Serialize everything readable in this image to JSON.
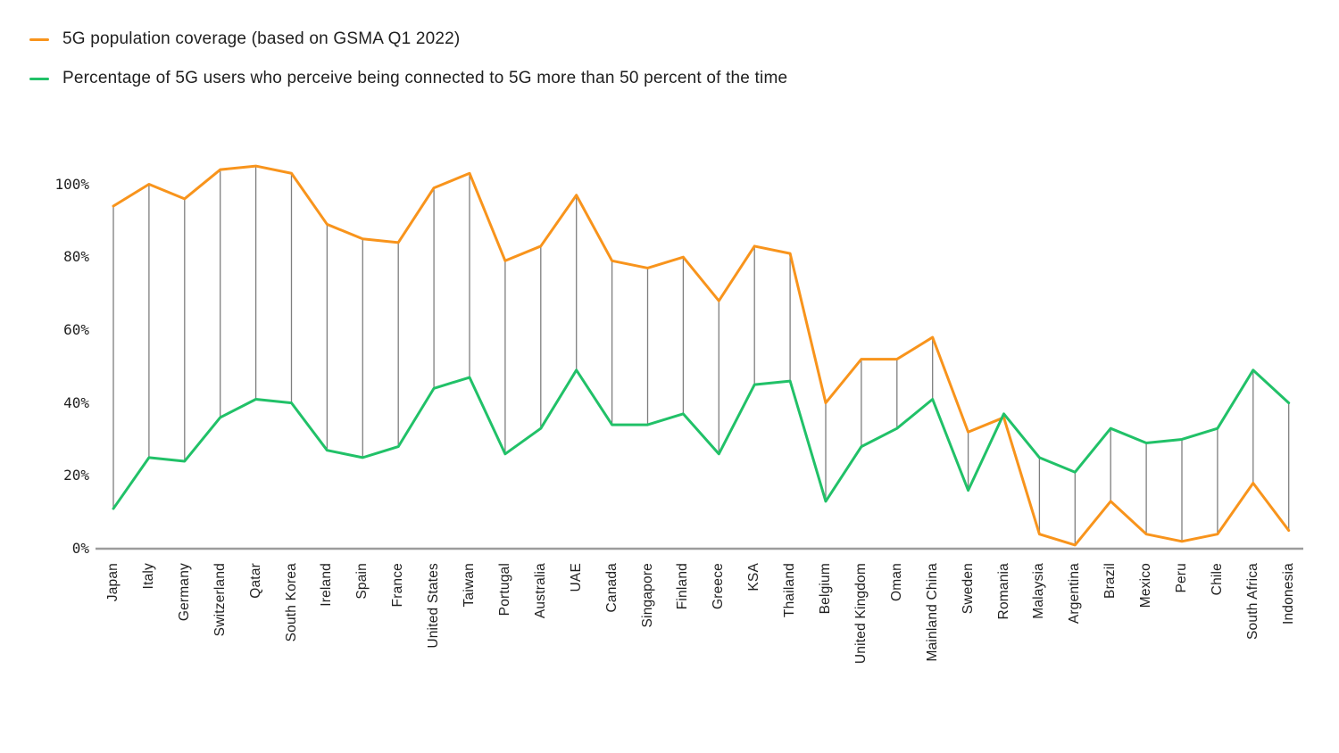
{
  "legend": {
    "items": [
      {
        "label": "5G population coverage (based on GSMA Q1 2022)",
        "color": "#F8941C"
      },
      {
        "label": "Percentage of 5G users who perceive being connected to 5G more than 50 percent of the time",
        "color": "#21C168"
      }
    ]
  },
  "chart_data": {
    "type": "line",
    "categories": [
      "Japan",
      "Italy",
      "Germany",
      "Switzerland",
      "Qatar",
      "South Korea",
      "Ireland",
      "Spain",
      "France",
      "United States",
      "Taiwan",
      "Portugal",
      "Australia",
      "UAE",
      "Canada",
      "Singapore",
      "Finland",
      "Greece",
      "KSA",
      "Thailand",
      "Belgium",
      "United Kingdom",
      "Oman",
      "Mainland China",
      "Sweden",
      "Romania",
      "Malaysia",
      "Argentina",
      "Brazil",
      "Mexico",
      "Peru",
      "Chile",
      "South Africa",
      "Indonesia"
    ],
    "series": [
      {
        "name": "5G population coverage (based on GSMA Q1 2022)",
        "color": "#F8941C",
        "values": [
          94,
          100,
          96,
          104,
          105,
          103,
          89,
          85,
          84,
          99,
          103,
          79,
          83,
          97,
          79,
          77,
          80,
          68,
          83,
          81,
          40,
          52,
          52,
          58,
          32,
          36,
          4,
          1,
          13,
          4,
          2,
          4,
          18,
          5
        ]
      },
      {
        "name": "Percentage of 5G users who perceive being connected to 5G more than 50 percent of the time",
        "color": "#21C168",
        "values": [
          11,
          25,
          24,
          36,
          41,
          40,
          27,
          25,
          28,
          44,
          47,
          26,
          33,
          49,
          34,
          34,
          37,
          26,
          45,
          46,
          13,
          28,
          33,
          41,
          16,
          37,
          25,
          21,
          33,
          29,
          30,
          33,
          49,
          40
        ]
      }
    ],
    "title": "",
    "xlabel": "",
    "ylabel": "",
    "yticks": [
      0,
      20,
      40,
      60,
      80,
      100
    ],
    "ytick_labels": [
      "0%",
      "20%",
      "40%",
      "60%",
      "80%",
      "100%"
    ],
    "ylim": [
      0,
      107
    ],
    "grid": false,
    "vertical_connectors": true,
    "legend_position": "top-left"
  },
  "style": {
    "axis_color": "#9c9c9c",
    "connector_color": "#7e7e7e",
    "text_color": "#1f1f1f"
  }
}
